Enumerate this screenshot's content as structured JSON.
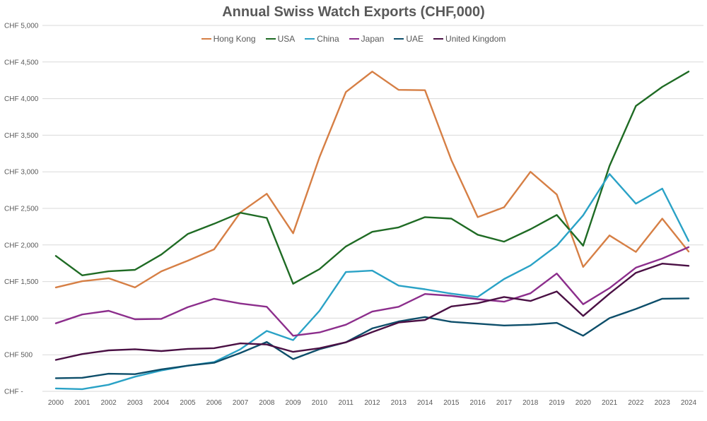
{
  "chart_data": {
    "type": "line",
    "title": "Annual Swiss Watch Exports (CHF,000)",
    "xlabel": "",
    "ylabel": "",
    "ylim": [
      0,
      5000
    ],
    "y_ticks": [
      0,
      500,
      1000,
      1500,
      2000,
      2500,
      3000,
      3500,
      4000,
      4500,
      5000
    ],
    "y_tick_labels": [
      "CHF -",
      "CHF 500",
      "CHF 1,000",
      "CHF 1,500",
      "CHF 2,000",
      "CHF 2,500",
      "CHF 3,000",
      "CHF 3,500",
      "CHF 4,000",
      "CHF 4,500",
      "CHF 5,000"
    ],
    "grid": true,
    "legend_position": "top-center",
    "categories": [
      "2000",
      "2001",
      "2002",
      "2003",
      "2004",
      "2005",
      "2006",
      "2007",
      "2008",
      "2009",
      "2010",
      "2011",
      "2012",
      "2013",
      "2014",
      "2015",
      "2016",
      "2017",
      "2018",
      "2019",
      "2020",
      "2021",
      "2022",
      "2023",
      "2024"
    ],
    "series": [
      {
        "name": "Hong Kong",
        "color": "#d67f45",
        "values": [
          1420,
          1505,
          1545,
          1420,
          1640,
          1785,
          1940,
          2445,
          2700,
          2160,
          3200,
          4090,
          4370,
          4120,
          4115,
          3160,
          2380,
          2515,
          3000,
          2690,
          1700,
          2130,
          1905,
          2360,
          1910
        ]
      },
      {
        "name": "USA",
        "color": "#1f6b24",
        "values": [
          1850,
          1585,
          1640,
          1660,
          1870,
          2150,
          2290,
          2440,
          2370,
          1470,
          1670,
          1980,
          2180,
          2240,
          2380,
          2360,
          2140,
          2045,
          2215,
          2410,
          1990,
          3080,
          3900,
          4160,
          4370
        ]
      },
      {
        "name": "China",
        "color": "#2aa2c6",
        "values": [
          40,
          30,
          90,
          200,
          285,
          350,
          400,
          575,
          825,
          700,
          1100,
          1630,
          1650,
          1445,
          1395,
          1335,
          1290,
          1535,
          1720,
          1990,
          2405,
          2970,
          2565,
          2770,
          2055
        ]
      },
      {
        "name": "Japan",
        "color": "#8c2e8c",
        "values": [
          930,
          1050,
          1100,
          985,
          990,
          1150,
          1265,
          1200,
          1155,
          760,
          805,
          910,
          1090,
          1155,
          1330,
          1305,
          1260,
          1225,
          1340,
          1610,
          1190,
          1410,
          1690,
          1815,
          1970
        ]
      },
      {
        "name": "UAE",
        "color": "#0d4e6a",
        "values": [
          180,
          185,
          240,
          235,
          300,
          350,
          390,
          525,
          675,
          440,
          575,
          670,
          860,
          955,
          1015,
          950,
          925,
          900,
          910,
          935,
          760,
          1000,
          1125,
          1265,
          1270
        ]
      },
      {
        "name": "United Kingdom",
        "color": "#4a1044",
        "values": [
          430,
          510,
          560,
          575,
          550,
          580,
          590,
          655,
          640,
          540,
          590,
          670,
          810,
          940,
          975,
          1160,
          1205,
          1290,
          1235,
          1365,
          1030,
          1335,
          1620,
          1745,
          1715
        ]
      }
    ]
  }
}
